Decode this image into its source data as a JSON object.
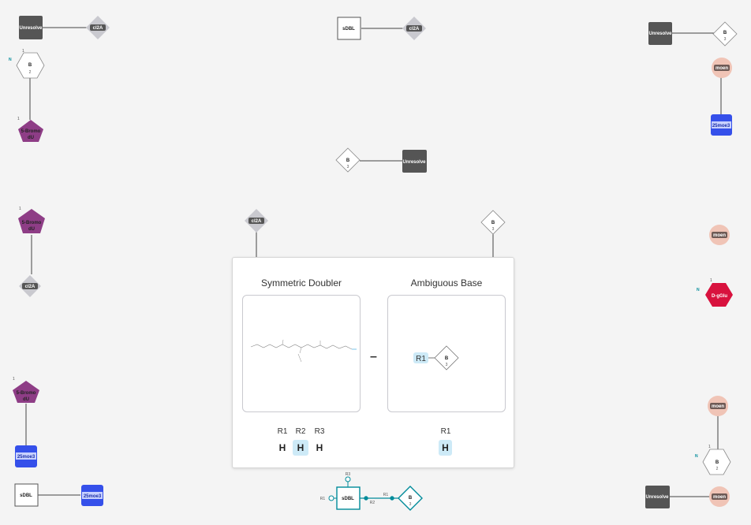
{
  "colors": {
    "unresolved": "#555555",
    "modifier": "#c9c9cf",
    "pentagon": "#8e3d86",
    "blue": "#3550ea",
    "moen": "#f0c4b6",
    "dglu": "#d8123e",
    "accent": "#008b9a"
  },
  "nodes": {
    "unresolve": "Unresolve",
    "cl2a": "cl2A",
    "sdbl": "sDBL",
    "b": "B",
    "n2": "2",
    "n3": "3",
    "n1": "1",
    "bromo1": "5-Bromo",
    "bromo2": "dU",
    "moen": "moen",
    "moe3": "25moe3",
    "dglu": "D-gGlu",
    "n_label": "N"
  },
  "card": {
    "left_title": "Symmetric Doubler",
    "right_title": "Ambiguous Base",
    "r1_tag": "R1",
    "left_rgroups": [
      {
        "label": "R1",
        "value": "H",
        "highlight": false
      },
      {
        "label": "R2",
        "value": "H",
        "highlight": true
      },
      {
        "label": "R3",
        "value": "H",
        "highlight": false
      }
    ],
    "right_rgroups": [
      {
        "label": "R1",
        "value": "H",
        "highlight": true
      }
    ]
  },
  "bottom": {
    "r1": "R1",
    "r2": "R2",
    "r3": "R3",
    "sdbl": "sDBL",
    "b": "B",
    "n3": "3"
  }
}
